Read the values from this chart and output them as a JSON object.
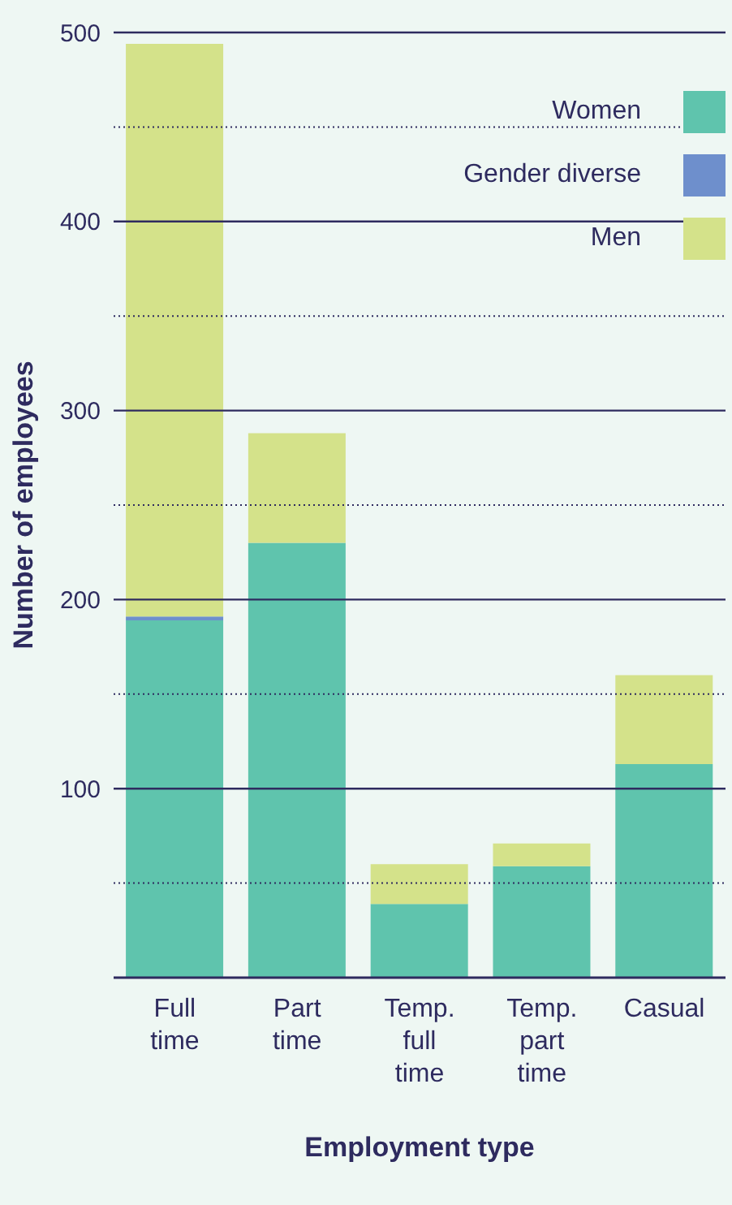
{
  "chart_data": {
    "type": "bar",
    "stacked": true,
    "xlabel": "Employment type",
    "ylabel": "Number of employees",
    "categories": [
      "Full time",
      "Part time",
      "Temp. full time",
      "Temp. part time",
      "Casual"
    ],
    "series": [
      {
        "name": "Women",
        "color": "#5fc4ad",
        "values": [
          189,
          230,
          39,
          59,
          113
        ]
      },
      {
        "name": "Gender diverse",
        "color": "#6e8fcc",
        "values": [
          2,
          0,
          0,
          0,
          0
        ]
      },
      {
        "name": "Men",
        "color": "#d4e28a",
        "values": [
          303,
          58,
          21,
          12,
          47
        ]
      }
    ],
    "ylim": [
      0,
      500
    ],
    "yticks": [
      {
        "value": 50,
        "label": null
      },
      100,
      {
        "value": 150,
        "label": null
      },
      200,
      {
        "value": 250,
        "label": null
      },
      300,
      {
        "value": 350,
        "label": null
      },
      400,
      {
        "value": 450,
        "label": null
      },
      500
    ],
    "grid": "y",
    "legend": "top right"
  }
}
